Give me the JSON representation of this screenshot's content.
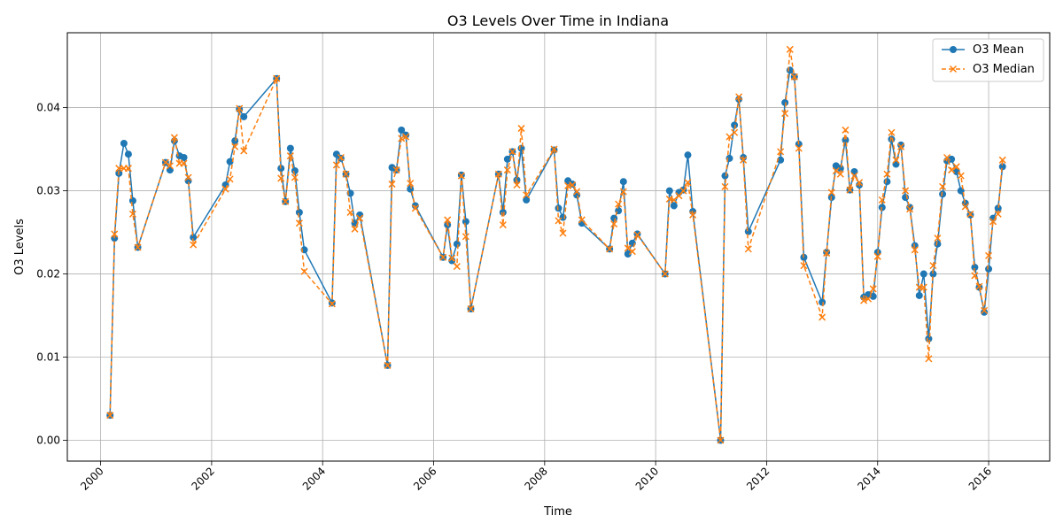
{
  "chart_data": {
    "type": "line",
    "title": "O3 Levels Over Time in Indiana",
    "xlabel": "Time",
    "ylabel": "O3 Levels",
    "xlim": [
      1999.4,
      2017.1
    ],
    "ylim": [
      -0.0025,
      0.049
    ],
    "x_ticks": [
      2000,
      2002,
      2004,
      2006,
      2008,
      2010,
      2012,
      2014,
      2016
    ],
    "y_ticks": [
      0.0,
      0.01,
      0.02,
      0.03,
      0.04
    ],
    "y_tick_labels": [
      "0.00",
      "0.01",
      "0.02",
      "0.03",
      "0.04"
    ],
    "grid": true,
    "legend_position": "top-right",
    "x": [
      2000.17,
      2000.25,
      2000.33,
      2000.42,
      2000.5,
      2000.58,
      2000.67,
      2001.17,
      2001.25,
      2001.33,
      2001.42,
      2001.5,
      2001.58,
      2001.67,
      2002.25,
      2002.33,
      2002.42,
      2002.5,
      2002.58,
      2003.17,
      2003.25,
      2003.33,
      2003.42,
      2003.5,
      2003.58,
      2003.67,
      2004.17,
      2004.25,
      2004.33,
      2004.42,
      2004.5,
      2004.58,
      2004.67,
      2005.17,
      2005.25,
      2005.33,
      2005.42,
      2005.5,
      2005.58,
      2005.67,
      2006.17,
      2006.25,
      2006.33,
      2006.42,
      2006.5,
      2006.58,
      2006.67,
      2007.17,
      2007.25,
      2007.33,
      2007.42,
      2007.5,
      2007.58,
      2007.67,
      2008.17,
      2008.25,
      2008.33,
      2008.42,
      2008.5,
      2008.58,
      2008.67,
      2009.17,
      2009.25,
      2009.33,
      2009.42,
      2009.5,
      2009.58,
      2009.67,
      2010.17,
      2010.25,
      2010.33,
      2010.42,
      2010.5,
      2010.58,
      2010.67,
      2011.17,
      2011.25,
      2011.33,
      2011.42,
      2011.5,
      2011.58,
      2011.67,
      2012.25,
      2012.33,
      2012.42,
      2012.5,
      2012.58,
      2012.67,
      2013.0,
      2013.08,
      2013.17,
      2013.25,
      2013.33,
      2013.42,
      2013.5,
      2013.58,
      2013.67,
      2013.75,
      2013.83,
      2013.92,
      2014.0,
      2014.08,
      2014.17,
      2014.25,
      2014.33,
      2014.42,
      2014.5,
      2014.58,
      2014.67,
      2014.75,
      2014.83,
      2014.92,
      2015.0,
      2015.08,
      2015.17,
      2015.25,
      2015.33,
      2015.42,
      2015.5,
      2015.58,
      2015.67,
      2015.75,
      2015.83,
      2015.92,
      2016.0,
      2016.08,
      2016.17,
      2016.25
    ],
    "series": [
      {
        "name": "O3 Mean",
        "color": "#1f77b4",
        "style": "solid",
        "marker": "circle",
        "values": [
          0.003,
          0.0243,
          0.0321,
          0.0357,
          0.0344,
          0.0288,
          0.0232,
          0.0334,
          0.0325,
          0.036,
          0.0342,
          0.034,
          0.0312,
          0.0244,
          0.0307,
          0.0335,
          0.036,
          0.0398,
          0.0389,
          0.0435,
          0.0327,
          0.0287,
          0.0351,
          0.0324,
          0.0274,
          0.0229,
          0.0165,
          0.0344,
          0.0339,
          0.032,
          0.0297,
          0.0261,
          0.0271,
          0.009,
          0.0328,
          0.0325,
          0.0373,
          0.0367,
          0.0302,
          0.0282,
          0.022,
          0.0259,
          0.0216,
          0.0236,
          0.0319,
          0.0263,
          0.0158,
          0.032,
          0.0274,
          0.0338,
          0.0347,
          0.0313,
          0.0351,
          0.0289,
          0.0349,
          0.0279,
          0.0268,
          0.0312,
          0.0308,
          0.0295,
          0.0261,
          0.023,
          0.0267,
          0.0276,
          0.0311,
          0.0224,
          0.0237,
          0.0248,
          0.02,
          0.03,
          0.0282,
          0.0298,
          0.0301,
          0.0343,
          0.0275,
          0.0,
          0.0318,
          0.0339,
          0.0379,
          0.041,
          0.034,
          0.0251,
          0.0337,
          0.0406,
          0.0445,
          0.0437,
          0.0356,
          0.022,
          0.0166,
          0.0226,
          0.0292,
          0.033,
          0.0327,
          0.0361,
          0.0301,
          0.0323,
          0.0307,
          0.0172,
          0.0175,
          0.0173,
          0.0226,
          0.028,
          0.0311,
          0.0362,
          0.0332,
          0.0355,
          0.0292,
          0.028,
          0.0234,
          0.0174,
          0.02,
          0.0122,
          0.02,
          0.0236,
          0.0296,
          0.0336,
          0.0338,
          0.0323,
          0.03,
          0.0285,
          0.0271,
          0.0208,
          0.0184,
          0.0154,
          0.0206,
          0.0267,
          0.0279,
          0.0329
        ]
      },
      {
        "name": "O3 Median",
        "color": "#ff7f0e",
        "style": "dashed",
        "marker": "x",
        "values": [
          0.003,
          0.0248,
          0.0327,
          0.0327,
          0.0327,
          0.0272,
          0.0232,
          0.0334,
          0.033,
          0.0364,
          0.0333,
          0.0333,
          0.0316,
          0.0235,
          0.0302,
          0.0314,
          0.0353,
          0.0399,
          0.0348,
          0.0435,
          0.0315,
          0.0287,
          0.0342,
          0.0316,
          0.0261,
          0.0203,
          0.0164,
          0.0331,
          0.034,
          0.032,
          0.0274,
          0.0254,
          0.0267,
          0.009,
          0.0308,
          0.0325,
          0.0363,
          0.0365,
          0.0309,
          0.0279,
          0.022,
          0.0265,
          0.0219,
          0.0209,
          0.0318,
          0.0245,
          0.0158,
          0.032,
          0.0259,
          0.0325,
          0.0347,
          0.0307,
          0.0375,
          0.0295,
          0.035,
          0.0264,
          0.0249,
          0.0306,
          0.0307,
          0.0299,
          0.0265,
          0.023,
          0.026,
          0.0284,
          0.0299,
          0.0231,
          0.0227,
          0.0247,
          0.02,
          0.029,
          0.0289,
          0.0294,
          0.03,
          0.031,
          0.0271,
          0.0,
          0.0305,
          0.0365,
          0.037,
          0.0413,
          0.0337,
          0.023,
          0.0347,
          0.0393,
          0.047,
          0.0437,
          0.0351,
          0.021,
          0.0148,
          0.0225,
          0.0298,
          0.0324,
          0.032,
          0.0373,
          0.0301,
          0.0318,
          0.031,
          0.0168,
          0.017,
          0.0182,
          0.0221,
          0.0289,
          0.032,
          0.037,
          0.0337,
          0.0353,
          0.03,
          0.0278,
          0.0229,
          0.0184,
          0.0184,
          0.0098,
          0.021,
          0.0243,
          0.0305,
          0.034,
          0.0325,
          0.0329,
          0.0318,
          0.0281,
          0.0272,
          0.0198,
          0.0185,
          0.0156,
          0.0222,
          0.0263,
          0.0272,
          0.0337
        ]
      }
    ]
  }
}
